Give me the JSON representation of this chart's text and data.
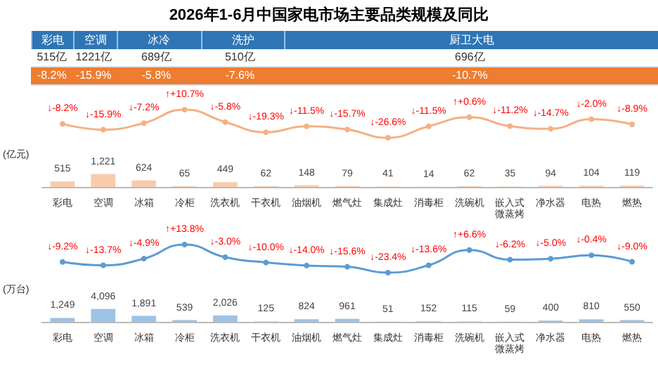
{
  "chart_data": [
    {
      "type": "other",
      "title": "2026年1-6月中国家电市场主要品类规模及同比",
      "categories": [
        "彩电",
        "空调",
        "冰冷",
        "洗护",
        "厨卫大电"
      ],
      "series": [
        {
          "color": "#ffffff",
          "values": [
            515,
            1221,
            689,
            510,
            696
          ],
          "value_labels": [
            "515亿",
            "1221亿",
            "689亿",
            "510亿",
            "696亿"
          ]
        },
        {
          "color": "#ed7d31",
          "values": [
            -8.2,
            -15.9,
            -5.8,
            -7.6,
            -10.7
          ],
          "value_labels": [
            "-8.2%",
            "-15.9%",
            "-5.8%",
            "-7.6%",
            "-10.7%"
          ]
        }
      ]
    },
    {
      "type": "line",
      "marker": "circle",
      "categories": [
        null,
        null,
        null,
        null,
        null,
        null,
        null,
        null,
        null,
        null,
        null,
        null,
        null,
        null,
        null
      ],
      "series": [
        {
          "color": "#f4b183",
          "values": [
            -8.2,
            -15.9,
            -7.2,
            10.7,
            -5.8,
            -19.3,
            -11.5,
            -15.7,
            -26.6,
            -11.5,
            0.6,
            -11.2,
            -14.7,
            -2.0,
            -8.9
          ],
          "value_labels": [
            "↓-8.2%",
            "↓-15.9%",
            "↓-7.2%",
            "↑+10.7%",
            "↓-5.8%",
            "↓-19.3%",
            "↓-11.5%",
            "↓-15.7%",
            "↓-26.6%",
            "↓-11.5%",
            "↑+0.6%",
            "↓-11.2%",
            "↓-14.7%",
            "↓-2.0%",
            "↓-8.9%"
          ]
        }
      ]
    },
    {
      "type": "bar",
      "ylabel": "(亿元)",
      "categories": [
        "彩电",
        "空调",
        "冰箱",
        "冷柜",
        "洗衣机",
        "干衣机",
        "油烟机",
        "燃气灶",
        "集成灶",
        "消毒柜",
        "洗碗机",
        "嵌入式微蒸烤",
        "净水器",
        "电热",
        "燃热"
      ],
      "series": [
        {
          "color": "#f8cbad",
          "values": [
            515,
            1221,
            624,
            65,
            449,
            62,
            148,
            79,
            41,
            14,
            62,
            35,
            94,
            104,
            119
          ],
          "value_labels": [
            "515",
            "1,221",
            "624",
            "65",
            "449",
            "62",
            "148",
            "79",
            "41",
            "14",
            "62",
            "35",
            "94",
            "104",
            "119"
          ]
        }
      ]
    },
    {
      "type": "line",
      "marker": "circle",
      "categories": [
        null,
        null,
        null,
        null,
        null,
        null,
        null,
        null,
        null,
        null,
        null,
        null,
        null,
        null,
        null
      ],
      "series": [
        {
          "color": "#5b9bd5",
          "values": [
            -9.2,
            -13.7,
            -4.9,
            13.8,
            -3.0,
            -10.0,
            -14.0,
            -15.6,
            -23.4,
            -13.6,
            6.6,
            -6.2,
            -5.0,
            -0.4,
            -9.0
          ],
          "value_labels": [
            "↓-9.2%",
            "↓-13.7%",
            "↓-4.9%",
            "↑+13.8%",
            "↓-3.0%",
            "↓-10.0%",
            "↓-14.0%",
            "↓-15.6%",
            "↓-23.4%",
            "↓-13.6%",
            "↑+6.6%",
            "↓-6.2%",
            "↓-5.0%",
            "↓-0.4%",
            "↓-9.0%"
          ]
        }
      ]
    },
    {
      "type": "bar",
      "ylabel": "(万台)",
      "categories": [
        "彩电",
        "空调",
        "冰箱",
        "冷柜",
        "洗衣机",
        "干衣机",
        "油烟机",
        "燃气灶",
        "集成灶",
        "消毒柜",
        "洗碗机",
        "嵌入式微蒸烤",
        "净水器",
        "电热",
        "燃热"
      ],
      "series": [
        {
          "color": "#9dc3e6",
          "values": [
            1249,
            4096,
            1891,
            539,
            2026,
            125,
            824,
            961,
            51,
            152,
            115,
            59,
            400,
            810,
            550
          ],
          "value_labels": [
            "1,249",
            "4,096",
            "1,891",
            "539",
            "2,026",
            "125",
            "824",
            "961",
            "51",
            "152",
            "115",
            "59",
            "400",
            "810",
            "550"
          ]
        }
      ]
    }
  ]
}
